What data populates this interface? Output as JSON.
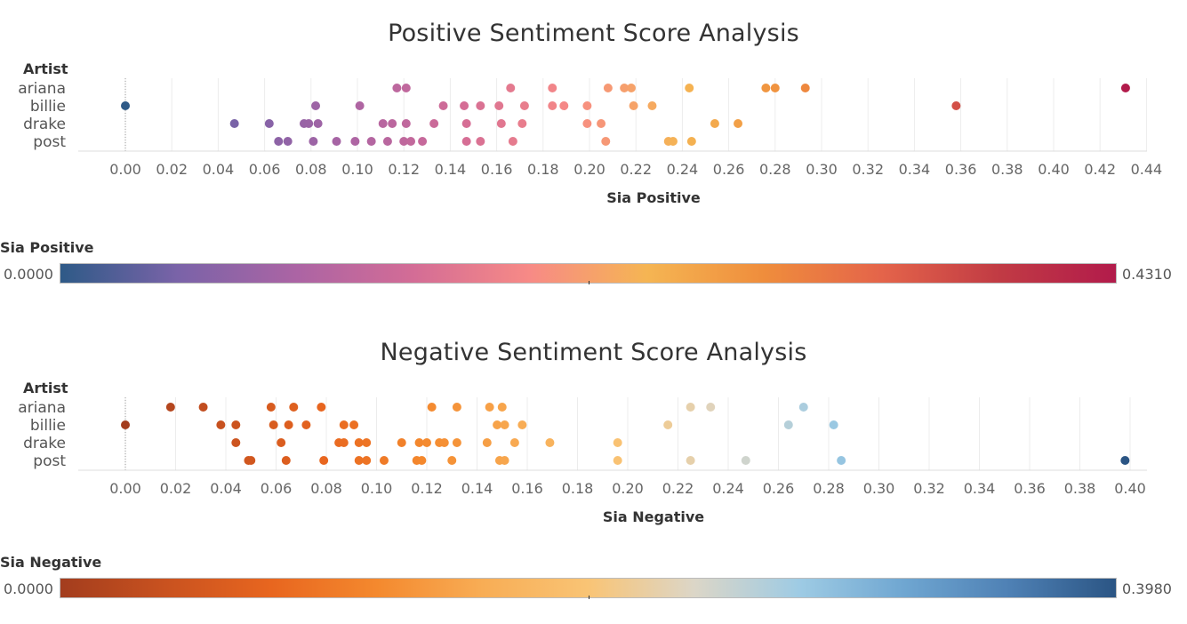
{
  "chart_data": [
    {
      "type": "scatter",
      "title": "Positive Sentiment Score Analysis",
      "row_header": "Artist",
      "xlabel": "Sia Positive",
      "xlim": [
        -0.02,
        0.45
      ],
      "xticks": [
        "0.00",
        "0.02",
        "0.04",
        "0.06",
        "0.08",
        "0.10",
        "0.12",
        "0.14",
        "0.16",
        "0.18",
        "0.20",
        "0.22",
        "0.24",
        "0.26",
        "0.28",
        "0.30",
        "0.32",
        "0.34",
        "0.36",
        "0.38",
        "0.40",
        "0.42",
        "0.44"
      ],
      "categories": [
        "ariana",
        "billie",
        "drake",
        "post"
      ],
      "color_scale": {
        "title": "Sia Positive",
        "min_label": "0.0000",
        "max_label": "0.4310",
        "min": 0.0,
        "max": 0.431,
        "stops": [
          "#2e5a87",
          "#7a63a8",
          "#ab64a4",
          "#d36c96",
          "#f78a86",
          "#f5b553",
          "#ef8d3c",
          "#e4644a",
          "#c13b44",
          "#b21b4b"
        ]
      },
      "series": [
        {
          "category": "ariana",
          "values": [
            0.117,
            0.121,
            0.166,
            0.184,
            0.208,
            0.215,
            0.218,
            0.243,
            0.276,
            0.28,
            0.293,
            0.431
          ]
        },
        {
          "category": "billie",
          "values": [
            0.0,
            0.082,
            0.101,
            0.137,
            0.146,
            0.153,
            0.161,
            0.172,
            0.184,
            0.189,
            0.199,
            0.219,
            0.227,
            0.358
          ]
        },
        {
          "category": "drake",
          "values": [
            0.047,
            0.062,
            0.077,
            0.079,
            0.083,
            0.111,
            0.115,
            0.121,
            0.133,
            0.147,
            0.162,
            0.171,
            0.199,
            0.205,
            0.254,
            0.264
          ]
        },
        {
          "category": "post",
          "values": [
            0.066,
            0.07,
            0.081,
            0.091,
            0.099,
            0.106,
            0.113,
            0.12,
            0.123,
            0.128,
            0.147,
            0.153,
            0.167,
            0.207,
            0.234,
            0.236,
            0.244
          ]
        }
      ]
    },
    {
      "type": "scatter",
      "title": "Negative Sentiment Score Analysis",
      "row_header": "Artist",
      "xlabel": "Sia Negative",
      "xlim": [
        -0.02,
        0.405
      ],
      "xticks": [
        "0.00",
        "0.02",
        "0.04",
        "0.06",
        "0.08",
        "0.10",
        "0.12",
        "0.14",
        "0.16",
        "0.18",
        "0.20",
        "0.22",
        "0.24",
        "0.26",
        "0.28",
        "0.30",
        "0.32",
        "0.34",
        "0.36",
        "0.38",
        "0.40"
      ],
      "categories": [
        "ariana",
        "billie",
        "drake",
        "post"
      ],
      "color_scale": {
        "title": "Sia Negative",
        "min_label": "0.0000",
        "max_label": "0.3980",
        "min": 0.0,
        "max": 0.398,
        "stops": [
          "#a33d1e",
          "#c9521f",
          "#e8661f",
          "#f4892e",
          "#f8ad55",
          "#f9c475",
          "#dcd6c7",
          "#9ecbe4",
          "#6fa6d1",
          "#4e80b4",
          "#2b5584"
        ]
      },
      "series": [
        {
          "category": "ariana",
          "values": [
            0.018,
            0.031,
            0.058,
            0.067,
            0.078,
            0.122,
            0.132,
            0.145,
            0.15,
            0.225,
            0.233,
            0.27
          ]
        },
        {
          "category": "billie",
          "values": [
            0.0,
            0.038,
            0.044,
            0.059,
            0.065,
            0.072,
            0.087,
            0.091,
            0.148,
            0.151,
            0.158,
            0.216,
            0.264,
            0.282
          ]
        },
        {
          "category": "drake",
          "values": [
            0.044,
            0.062,
            0.085,
            0.087,
            0.093,
            0.096,
            0.11,
            0.117,
            0.12,
            0.125,
            0.127,
            0.132,
            0.144,
            0.155,
            0.169,
            0.196
          ]
        },
        {
          "category": "post",
          "values": [
            0.049,
            0.05,
            0.064,
            0.079,
            0.093,
            0.096,
            0.103,
            0.116,
            0.118,
            0.13,
            0.149,
            0.151,
            0.196,
            0.225,
            0.247,
            0.285,
            0.398
          ]
        }
      ]
    }
  ]
}
